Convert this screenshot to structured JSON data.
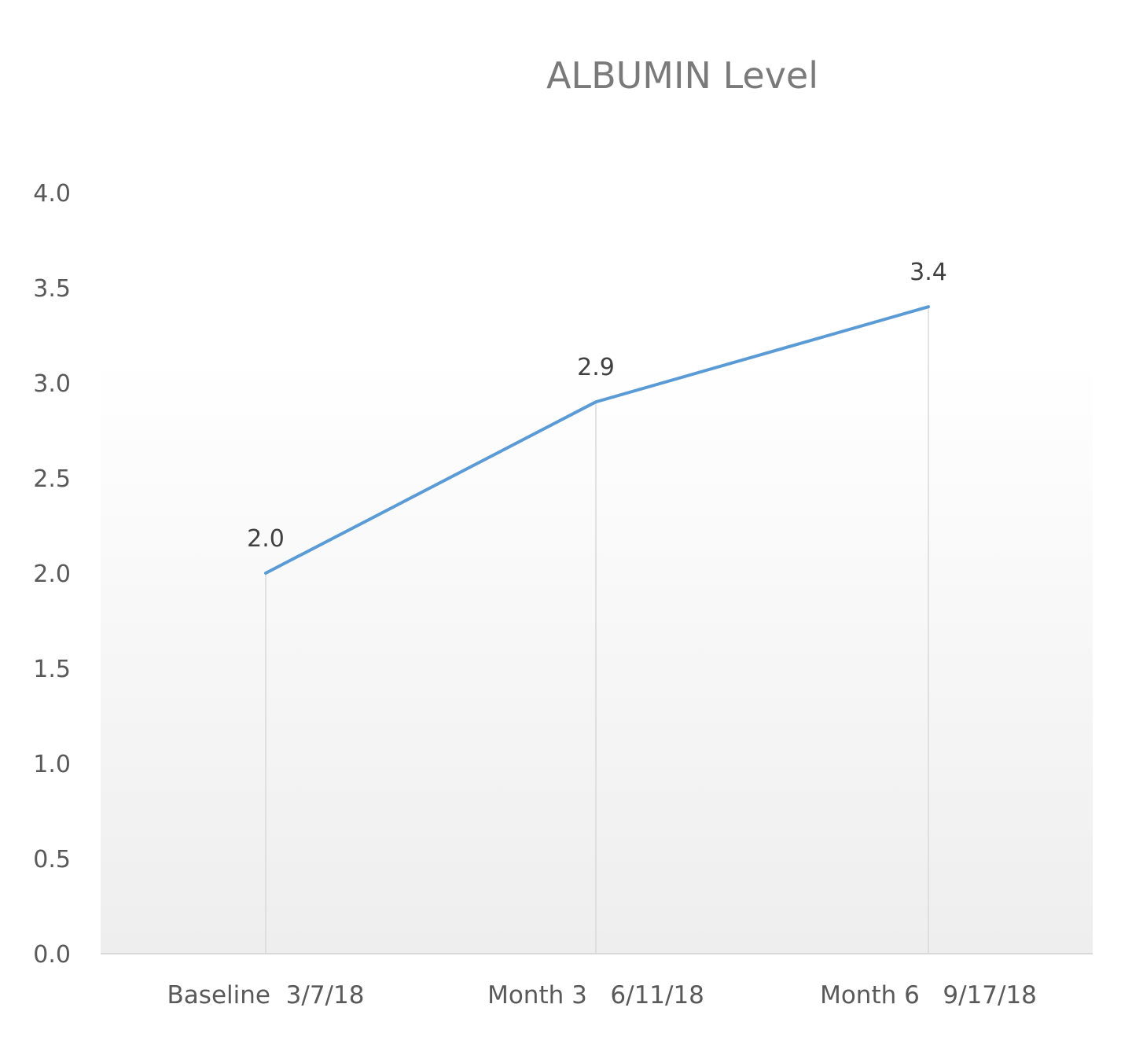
{
  "chart_data": {
    "type": "line",
    "title": "ALBUMIN Level",
    "xlabel": "",
    "ylabel": "",
    "categories": [
      "Baseline  3/7/18",
      "Month 3   6/11/18",
      "Month 6   9/17/18"
    ],
    "series": [
      {
        "values": [
          2.0,
          2.9,
          3.4
        ]
      }
    ],
    "data_labels": [
      "2.0",
      "2.9",
      "3.4"
    ],
    "yticks": [
      "0.0",
      "0.5",
      "1.0",
      "1.5",
      "2.0",
      "2.5",
      "3.0",
      "3.5",
      "4.0"
    ],
    "ylim": [
      0,
      4
    ],
    "grid": false,
    "drop_lines": true,
    "legend": "none",
    "colors": {
      "line": "#5b9bd5",
      "axis": "#d9d9d9",
      "drop_line": "#d9d9d9",
      "plot_bg_top": "#ffffff",
      "plot_bg_bottom": "#eeeeee"
    }
  }
}
